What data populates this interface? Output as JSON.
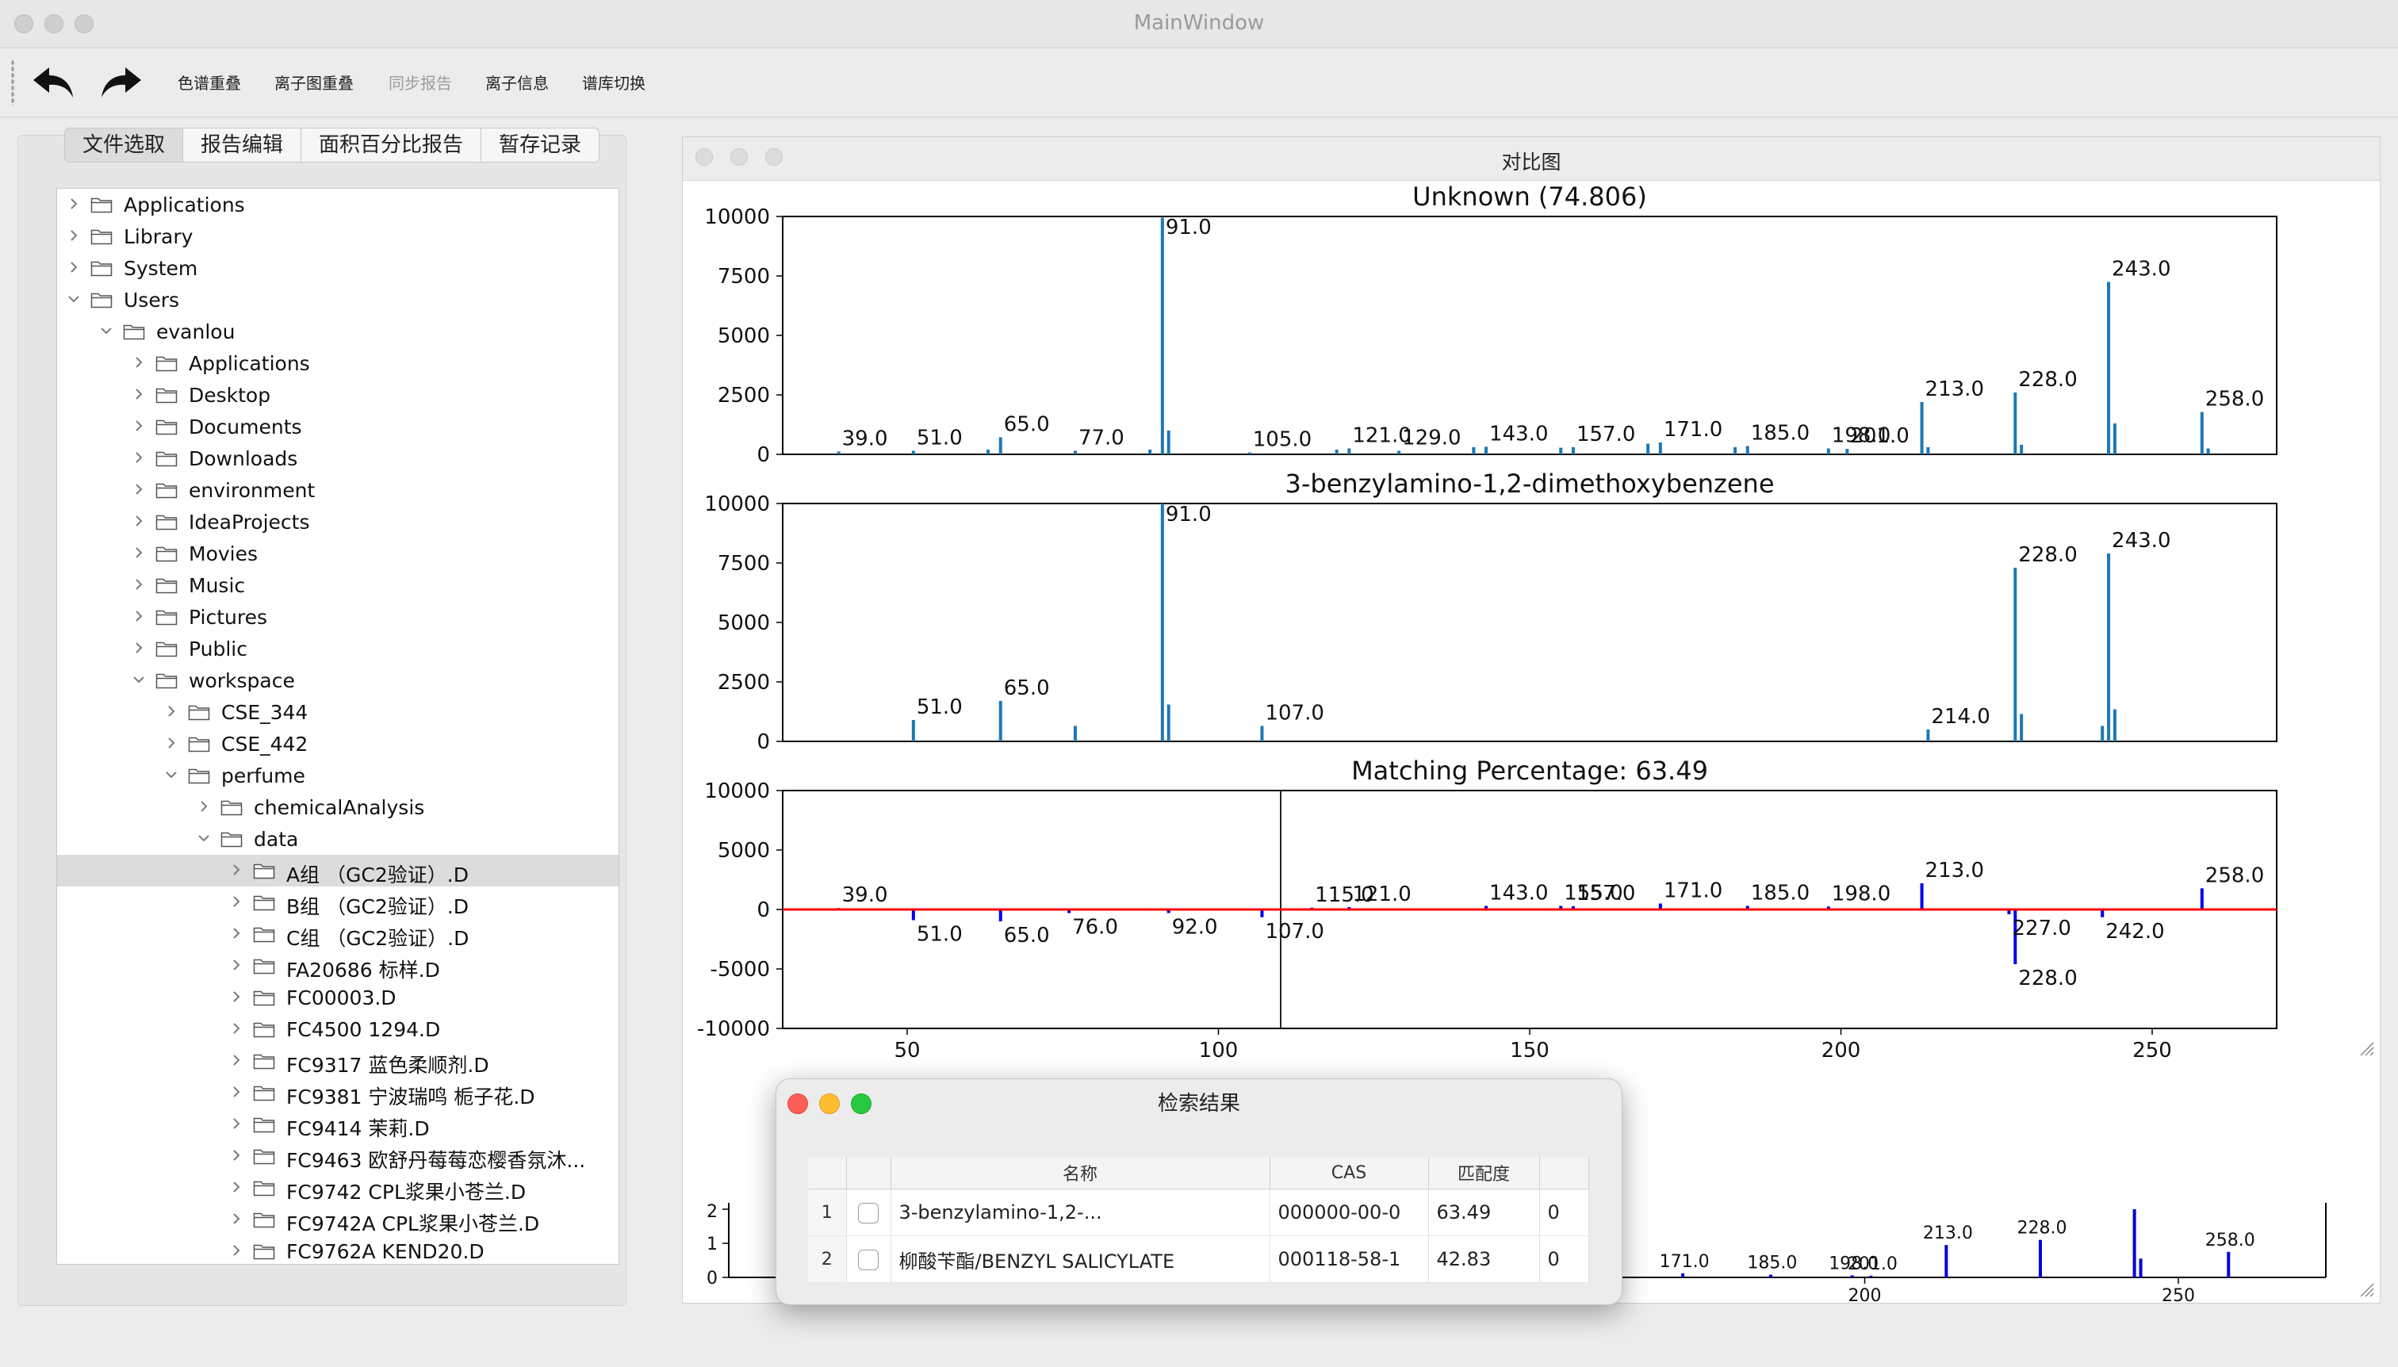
{
  "window": {
    "title": "MainWindow"
  },
  "toolbar": {
    "undo_icon": "undo-arrow-icon",
    "redo_icon": "redo-arrow-icon",
    "buttons": [
      {
        "label": "色谱重叠",
        "enabled": true
      },
      {
        "label": "离子图重叠",
        "enabled": true
      },
      {
        "label": "同步报告",
        "enabled": false
      },
      {
        "label": "离子信息",
        "enabled": true
      },
      {
        "label": "谱库切换",
        "enabled": true
      }
    ]
  },
  "left_panel": {
    "tabs": [
      "文件选取",
      "报告编辑",
      "面积百分比报告",
      "暂存记录"
    ],
    "active_tab": 0,
    "tree": [
      {
        "label": "Applications",
        "depth": 0,
        "expanded": false
      },
      {
        "label": "Library",
        "depth": 0,
        "expanded": false
      },
      {
        "label": "System",
        "depth": 0,
        "expanded": false
      },
      {
        "label": "Users",
        "depth": 0,
        "expanded": true
      },
      {
        "label": "evanlou",
        "depth": 1,
        "expanded": true
      },
      {
        "label": "Applications",
        "depth": 2,
        "expanded": false
      },
      {
        "label": "Desktop",
        "depth": 2,
        "expanded": false
      },
      {
        "label": "Documents",
        "depth": 2,
        "expanded": false
      },
      {
        "label": "Downloads",
        "depth": 2,
        "expanded": false
      },
      {
        "label": "environment",
        "depth": 2,
        "expanded": false
      },
      {
        "label": "IdeaProjects",
        "depth": 2,
        "expanded": false
      },
      {
        "label": "Movies",
        "depth": 2,
        "expanded": false
      },
      {
        "label": "Music",
        "depth": 2,
        "expanded": false
      },
      {
        "label": "Pictures",
        "depth": 2,
        "expanded": false
      },
      {
        "label": "Public",
        "depth": 2,
        "expanded": false
      },
      {
        "label": "workspace",
        "depth": 2,
        "expanded": true
      },
      {
        "label": "CSE_344",
        "depth": 3,
        "expanded": false
      },
      {
        "label": "CSE_442",
        "depth": 3,
        "expanded": false
      },
      {
        "label": "perfume",
        "depth": 3,
        "expanded": true
      },
      {
        "label": "chemicalAnalysis",
        "depth": 4,
        "expanded": false
      },
      {
        "label": "data",
        "depth": 4,
        "expanded": true
      },
      {
        "label": "A组 （GC2验证）.D",
        "depth": 5,
        "expanded": false,
        "selected": true
      },
      {
        "label": "B组 （GC2验证）.D",
        "depth": 5,
        "expanded": false
      },
      {
        "label": "C组 （GC2验证）.D",
        "depth": 5,
        "expanded": false
      },
      {
        "label": "FA20686 标样.D",
        "depth": 5,
        "expanded": false
      },
      {
        "label": "FC00003.D",
        "depth": 5,
        "expanded": false
      },
      {
        "label": "FC4500 1294.D",
        "depth": 5,
        "expanded": false
      },
      {
        "label": "FC9317 蓝色柔顺剂.D",
        "depth": 5,
        "expanded": false
      },
      {
        "label": "FC9381 宁波瑞鸣 栀子花.D",
        "depth": 5,
        "expanded": false
      },
      {
        "label": "FC9414 茉莉.D",
        "depth": 5,
        "expanded": false
      },
      {
        "label": "FC9463 欧舒丹莓莓恋樱香氛沐...",
        "depth": 5,
        "expanded": false
      },
      {
        "label": "FC9742 CPL浆果小苍兰.D",
        "depth": 5,
        "expanded": false
      },
      {
        "label": "FC9742A CPL浆果小苍兰.D",
        "depth": 5,
        "expanded": false
      },
      {
        "label": "FC9762A KEND20.D",
        "depth": 5,
        "expanded": false
      }
    ]
  },
  "compare_window": {
    "title": "对比图"
  },
  "chart_data": [
    {
      "type": "bar",
      "title": "Unknown (74.806)",
      "xlim": [
        30,
        270
      ],
      "ylim": [
        0,
        10000
      ],
      "yticks": [
        0,
        2500,
        5000,
        7500,
        10000
      ],
      "color": "#1f77b4",
      "x": [
        39,
        51,
        63,
        65,
        77,
        89,
        91,
        92,
        105,
        119,
        121,
        129,
        141,
        143,
        155,
        157,
        169,
        171,
        183,
        185,
        198,
        201,
        213,
        214,
        228,
        229,
        243,
        244,
        258,
        259
      ],
      "values": [
        120,
        150,
        200,
        720,
        150,
        200,
        9950,
        1000,
        80,
        200,
        250,
        150,
        300,
        320,
        280,
        300,
        450,
        500,
        300,
        350,
        250,
        230,
        2200,
        300,
        2600,
        400,
        7250,
        1300,
        1780,
        250
      ],
      "labels": [
        "39.0",
        "51.0",
        "65.0",
        "77.0",
        "91.0",
        "105.0",
        "121.0",
        "129.0",
        "143.0",
        "157.0",
        "171.0",
        "185.0",
        "198.0",
        "201.0",
        "213.0",
        "228.0",
        "243.0",
        "258.0"
      ]
    },
    {
      "type": "bar",
      "title": "3-benzylamino-1,2-dimethoxybenzene",
      "xlim": [
        30,
        270
      ],
      "ylim": [
        0,
        10000
      ],
      "yticks": [
        0,
        2500,
        5000,
        7500,
        10000
      ],
      "color": "#1f77b4",
      "x": [
        51,
        65,
        77,
        91,
        92,
        107,
        214,
        228,
        229,
        242,
        243,
        244
      ],
      "values": [
        900,
        1700,
        650,
        10000,
        1550,
        650,
        500,
        7300,
        1150,
        650,
        7900,
        1350
      ],
      "labels": [
        "51.0",
        "65.0",
        "91.0",
        "107.0",
        "214.0",
        "228.0",
        "243.0"
      ]
    },
    {
      "type": "bar",
      "title": "Matching Percentage: 63.49",
      "xlim": [
        30,
        270
      ],
      "ylim": [
        -10000,
        10000
      ],
      "yticks": [
        -10000,
        -5000,
        0,
        5000,
        10000
      ],
      "xlabels": [
        50,
        100,
        150,
        200,
        250
      ],
      "cursor_x": 110,
      "baseline_color": "#ff0000",
      "x": [
        39,
        51,
        65,
        76,
        92,
        107,
        115,
        121,
        143,
        155,
        157,
        171,
        185,
        198,
        213,
        227,
        228,
        242,
        258
      ],
      "values": [
        120,
        -900,
        -1000,
        -300,
        -300,
        -650,
        150,
        200,
        300,
        300,
        280,
        500,
        300,
        250,
        2200,
        -400,
        -4600,
        -650,
        1780
      ],
      "labels": [
        "39.0",
        "51.0",
        "65.0",
        "76.0",
        "92.0",
        "107.0",
        "115.0",
        "121.0",
        "143.0",
        "155.0",
        "157.0",
        "171.0",
        "185.0",
        "198.0",
        "213.0",
        "227.0",
        "228.0",
        "242.0",
        "258.0"
      ]
    },
    {
      "type": "bar",
      "xlim": [
        30,
        270
      ],
      "ylim": [
        0,
        2
      ],
      "yticks": [
        0,
        1,
        2
      ],
      "xlabels": [
        200,
        250
      ],
      "color": "#0000dd",
      "x": [
        171,
        185,
        198,
        201,
        213,
        228,
        243,
        244,
        258
      ],
      "values": [
        0.12,
        0.08,
        0.06,
        0.05,
        0.95,
        1.1,
        2.0,
        0.55,
        0.75
      ],
      "labels": [
        "171.0",
        "185.0",
        "198.0",
        "201.0",
        "213.0",
        "228.0",
        "258.0"
      ]
    }
  ],
  "results_dialog": {
    "title": "检索结果",
    "columns": [
      "",
      "",
      "名称",
      "CAS",
      "匹配度",
      ""
    ],
    "rows": [
      {
        "num": "1",
        "name": "3-benzylamino-1,2-...",
        "cas": "000000-00-0",
        "match": "63.49",
        "extra": "0"
      },
      {
        "num": "2",
        "name": "柳酸苄酯/BENZYL SALICYLATE",
        "cas": "000118-58-1",
        "match": "42.83",
        "extra": "0"
      }
    ]
  }
}
